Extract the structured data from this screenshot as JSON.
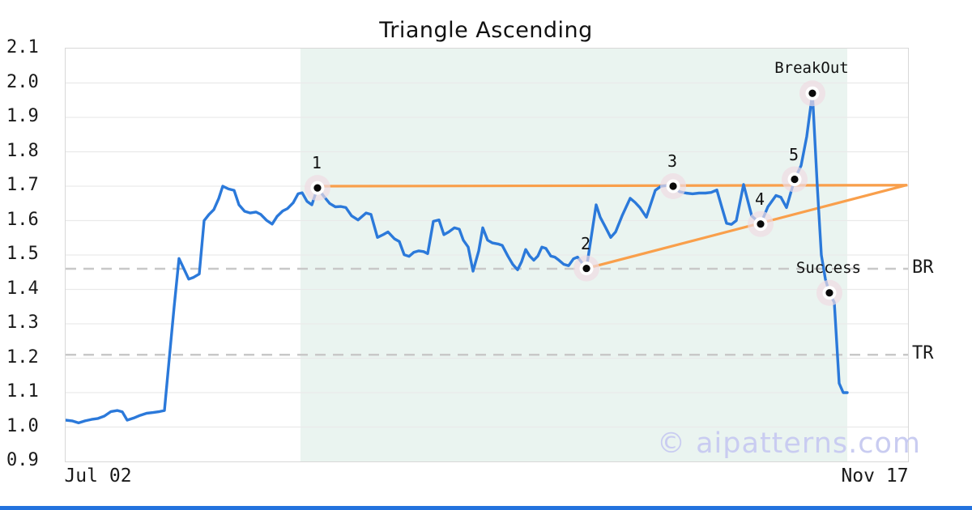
{
  "watermark": {
    "text": "© aipatterns.com"
  },
  "colors": {
    "price_line": "#2b79da",
    "trendline": "#f99f4b",
    "highlight_region": "#eaf4f0",
    "gridline": "#e9e9e9",
    "level_dash": "#c8c8c8",
    "marker_halo": "#f0dce2",
    "marker_ring": "#ffffff",
    "marker_dot": "#0a0a0a",
    "bottom_bar": "#2372de",
    "watermark": "#c9ccf1"
  },
  "chart_data": {
    "type": "line",
    "title": "Triangle Ascending",
    "x_axis": {
      "tick_labels": [
        "Jul 02",
        "Nov 17"
      ]
    },
    "y_axis": {
      "min": 0.9,
      "max": 2.1,
      "tick_step": 0.1,
      "tick_labels": [
        "0.9",
        "1.0",
        "1.1",
        "1.2",
        "1.3",
        "1.4",
        "1.5",
        "1.6",
        "1.7",
        "1.8",
        "1.9",
        "2.0",
        "2.1"
      ]
    },
    "grid": true,
    "highlight_region": {
      "x_from": 0.2788,
      "x_to": 0.9279
    },
    "levels": [
      {
        "label": "BR",
        "value": 1.46
      },
      {
        "label": "TR",
        "value": 1.21
      }
    ],
    "trendlines": [
      {
        "name": "resistance",
        "from": {
          "x": 0.299,
          "value": 1.7
        },
        "to": {
          "x": 0.998,
          "value": 1.703
        }
      },
      {
        "name": "support",
        "from": {
          "x": 0.6183,
          "value": 1.461
        },
        "to": {
          "x": 0.998,
          "value": 1.703
        }
      }
    ],
    "pattern_points": [
      {
        "label": "1",
        "x": 0.299,
        "value": 1.695
      },
      {
        "label": "2",
        "x": 0.6183,
        "value": 1.461
      },
      {
        "label": "3",
        "x": 0.7212,
        "value": 1.7
      },
      {
        "label": "4",
        "x": 0.825,
        "value": 1.59
      },
      {
        "label": "5",
        "x": 0.8654,
        "value": 1.72
      },
      {
        "label": "BreakOut",
        "x": 0.8865,
        "value": 1.97
      },
      {
        "label": "Success",
        "x": 0.9067,
        "value": 1.39
      }
    ],
    "series": [
      {
        "name": "price",
        "points": [
          [
            0.0,
            1.02
          ],
          [
            0.0077,
            1.018
          ],
          [
            0.0154,
            1.012
          ],
          [
            0.0231,
            1.018
          ],
          [
            0.0308,
            1.022
          ],
          [
            0.0385,
            1.025
          ],
          [
            0.0462,
            1.032
          ],
          [
            0.0538,
            1.045
          ],
          [
            0.0615,
            1.048
          ],
          [
            0.0673,
            1.044
          ],
          [
            0.0731,
            1.02
          ],
          [
            0.0808,
            1.026
          ],
          [
            0.0885,
            1.034
          ],
          [
            0.0962,
            1.04
          ],
          [
            0.1038,
            1.042
          ],
          [
            0.1115,
            1.045
          ],
          [
            0.1173,
            1.048
          ],
          [
            0.1231,
            1.2
          ],
          [
            0.1288,
            1.35
          ],
          [
            0.1346,
            1.49
          ],
          [
            0.1404,
            1.46
          ],
          [
            0.1462,
            1.43
          ],
          [
            0.1519,
            1.435
          ],
          [
            0.1587,
            1.445
          ],
          [
            0.1644,
            1.6
          ],
          [
            0.1702,
            1.618
          ],
          [
            0.176,
            1.632
          ],
          [
            0.1817,
            1.664
          ],
          [
            0.1865,
            1.7
          ],
          [
            0.1933,
            1.692
          ],
          [
            0.2,
            1.688
          ],
          [
            0.2058,
            1.646
          ],
          [
            0.2125,
            1.627
          ],
          [
            0.2192,
            1.622
          ],
          [
            0.226,
            1.625
          ],
          [
            0.2317,
            1.618
          ],
          [
            0.2385,
            1.601
          ],
          [
            0.2452,
            1.59
          ],
          [
            0.251,
            1.612
          ],
          [
            0.2577,
            1.628
          ],
          [
            0.2635,
            1.635
          ],
          [
            0.2702,
            1.652
          ],
          [
            0.276,
            1.678
          ],
          [
            0.2808,
            1.681
          ],
          [
            0.2865,
            1.656
          ],
          [
            0.2923,
            1.646
          ],
          [
            0.299,
            1.695
          ],
          [
            0.3067,
            1.67
          ],
          [
            0.3135,
            1.65
          ],
          [
            0.3202,
            1.64
          ],
          [
            0.3269,
            1.641
          ],
          [
            0.3327,
            1.638
          ],
          [
            0.3394,
            1.614
          ],
          [
            0.3471,
            1.602
          ],
          [
            0.3567,
            1.622
          ],
          [
            0.3625,
            1.618
          ],
          [
            0.3702,
            1.551
          ],
          [
            0.3769,
            1.559
          ],
          [
            0.3827,
            1.567
          ],
          [
            0.3904,
            1.547
          ],
          [
            0.3962,
            1.539
          ],
          [
            0.4019,
            1.501
          ],
          [
            0.4077,
            1.496
          ],
          [
            0.4135,
            1.508
          ],
          [
            0.4192,
            1.512
          ],
          [
            0.425,
            1.51
          ],
          [
            0.4298,
            1.504
          ],
          [
            0.4365,
            1.598
          ],
          [
            0.4433,
            1.602
          ],
          [
            0.449,
            1.559
          ],
          [
            0.4548,
            1.567
          ],
          [
            0.4615,
            1.579
          ],
          [
            0.4673,
            1.575
          ],
          [
            0.4721,
            1.543
          ],
          [
            0.4779,
            1.523
          ],
          [
            0.4837,
            1.453
          ],
          [
            0.4904,
            1.512
          ],
          [
            0.4952,
            1.579
          ],
          [
            0.501,
            1.543
          ],
          [
            0.5067,
            1.535
          ],
          [
            0.5135,
            1.532
          ],
          [
            0.5183,
            1.528
          ],
          [
            0.525,
            1.497
          ],
          [
            0.5308,
            1.473
          ],
          [
            0.5365,
            1.457
          ],
          [
            0.5413,
            1.481
          ],
          [
            0.5462,
            1.516
          ],
          [
            0.551,
            1.497
          ],
          [
            0.5558,
            1.485
          ],
          [
            0.5606,
            1.497
          ],
          [
            0.5654,
            1.523
          ],
          [
            0.5702,
            1.519
          ],
          [
            0.576,
            1.497
          ],
          [
            0.5808,
            1.494
          ],
          [
            0.5856,
            1.485
          ],
          [
            0.5913,
            1.473
          ],
          [
            0.5971,
            1.469
          ],
          [
            0.6029,
            1.489
          ],
          [
            0.6077,
            1.494
          ],
          [
            0.6125,
            1.479
          ],
          [
            0.6183,
            1.461
          ],
          [
            0.6298,
            1.646
          ],
          [
            0.6346,
            1.61
          ],
          [
            0.6404,
            1.583
          ],
          [
            0.6471,
            1.551
          ],
          [
            0.6529,
            1.567
          ],
          [
            0.6606,
            1.614
          ],
          [
            0.6702,
            1.665
          ],
          [
            0.676,
            1.653
          ],
          [
            0.6817,
            1.638
          ],
          [
            0.6894,
            1.61
          ],
          [
            0.7,
            1.688
          ],
          [
            0.7067,
            1.7
          ],
          [
            0.7144,
            1.702
          ],
          [
            0.7212,
            1.7
          ],
          [
            0.7288,
            1.684
          ],
          [
            0.7365,
            1.68
          ],
          [
            0.7442,
            1.678
          ],
          [
            0.7519,
            1.68
          ],
          [
            0.7596,
            1.68
          ],
          [
            0.7663,
            1.682
          ],
          [
            0.7731,
            1.689
          ],
          [
            0.7788,
            1.64
          ],
          [
            0.7846,
            1.592
          ],
          [
            0.7904,
            1.589
          ],
          [
            0.7962,
            1.6
          ],
          [
            0.8048,
            1.705
          ],
          [
            0.8144,
            1.614
          ],
          [
            0.825,
            1.59
          ],
          [
            0.8337,
            1.64
          ],
          [
            0.8433,
            1.673
          ],
          [
            0.849,
            1.668
          ],
          [
            0.8558,
            1.638
          ],
          [
            0.8654,
            1.72
          ],
          [
            0.8731,
            1.76
          ],
          [
            0.8798,
            1.845
          ],
          [
            0.8865,
            1.97
          ],
          [
            0.8923,
            1.7
          ],
          [
            0.8971,
            1.5
          ],
          [
            0.9019,
            1.43
          ],
          [
            0.9067,
            1.39
          ],
          [
            0.9125,
            1.362
          ],
          [
            0.9183,
            1.127
          ],
          [
            0.9231,
            1.1
          ],
          [
            0.9279,
            1.1
          ]
        ]
      }
    ]
  }
}
